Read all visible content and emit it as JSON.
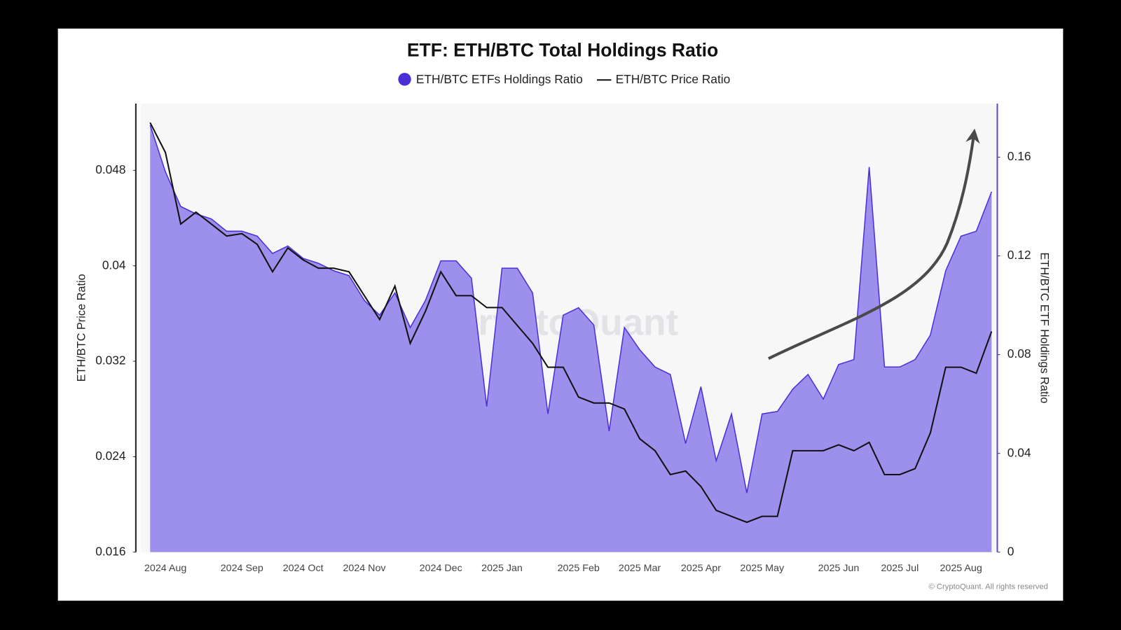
{
  "chart_data": {
    "type": "area-line",
    "title": "ETF: ETH/BTC Total Holdings Ratio",
    "ylabel": "ETH/BTC Price Ratio",
    "y2label": "ETH/BTC ETF Holdings Ratio",
    "watermark": "CryptoQuant",
    "footer": "© CryptoQuant. All rights reserved",
    "categories": [
      null,
      "2024 Aug",
      null,
      null,
      null,
      null,
      "2024 Sep",
      null,
      null,
      null,
      "2024 Oct",
      null,
      null,
      null,
      "2024 Nov",
      null,
      null,
      null,
      null,
      "2024 Dec",
      null,
      null,
      null,
      "2025 Jan",
      null,
      null,
      null,
      null,
      "2025 Feb",
      null,
      null,
      null,
      "2025 Mar",
      null,
      null,
      null,
      "2025 Apr",
      null,
      null,
      null,
      "2025 May",
      null,
      null,
      null,
      null,
      "2025 Jun",
      null,
      null,
      null,
      "2025 Jul",
      null,
      null,
      null,
      "2025 Aug",
      null,
      null
    ],
    "series": [
      {
        "name": "ETH/BTC ETFs Holdings Ratio",
        "color": "#4b30d8",
        "fill": "#9d90ec",
        "axis": "y2",
        "kind": "area",
        "values": [
          0.173,
          0.154,
          0.14,
          0.137,
          0.135,
          0.13,
          0.13,
          0.128,
          0.121,
          0.124,
          0.119,
          0.117,
          0.114,
          0.112,
          0.102,
          0.096,
          0.105,
          0.091,
          0.102,
          0.118,
          0.118,
          0.111,
          0.059,
          0.115,
          0.115,
          0.105,
          0.056,
          0.096,
          0.099,
          0.092,
          0.049,
          0.091,
          0.082,
          0.075,
          0.072,
          0.044,
          0.067,
          0.037,
          0.056,
          0.024,
          0.056,
          0.057,
          0.066,
          0.072,
          0.062,
          0.076,
          0.078,
          0.156,
          0.075,
          0.075,
          0.078,
          0.088,
          0.114,
          0.128,
          0.13,
          0.146
        ]
      },
      {
        "name": "ETH/BTC Price Ratio",
        "color": "#111111",
        "axis": "y",
        "kind": "line",
        "values": [
          0.052,
          0.0495,
          0.0435,
          0.0445,
          0.0435,
          0.0425,
          0.0427,
          0.0418,
          0.0395,
          0.0415,
          0.0405,
          0.0398,
          0.0398,
          0.0395,
          0.0375,
          0.0355,
          0.0383,
          0.0335,
          0.0362,
          0.0395,
          0.0375,
          0.0375,
          0.0365,
          0.0365,
          0.035,
          0.0335,
          0.0315,
          0.0315,
          0.029,
          0.0285,
          0.0285,
          0.028,
          0.0255,
          0.0245,
          0.0225,
          0.0228,
          0.0215,
          0.0195,
          0.019,
          0.0185,
          0.019,
          0.019,
          0.0245,
          0.0245,
          0.0245,
          0.025,
          0.0245,
          0.0252,
          0.0225,
          0.0225,
          0.023,
          0.026,
          0.0315,
          0.0315,
          0.031,
          0.0345
        ]
      }
    ],
    "ylim": [
      0.016,
      0.0536
    ],
    "yticks": [
      0.016,
      0.024,
      0.032,
      0.04,
      0.048
    ],
    "y2lim": [
      0,
      0.1817
    ],
    "y2ticks": [
      0,
      0.04,
      0.08,
      0.12,
      0.16
    ],
    "legend": "top"
  }
}
